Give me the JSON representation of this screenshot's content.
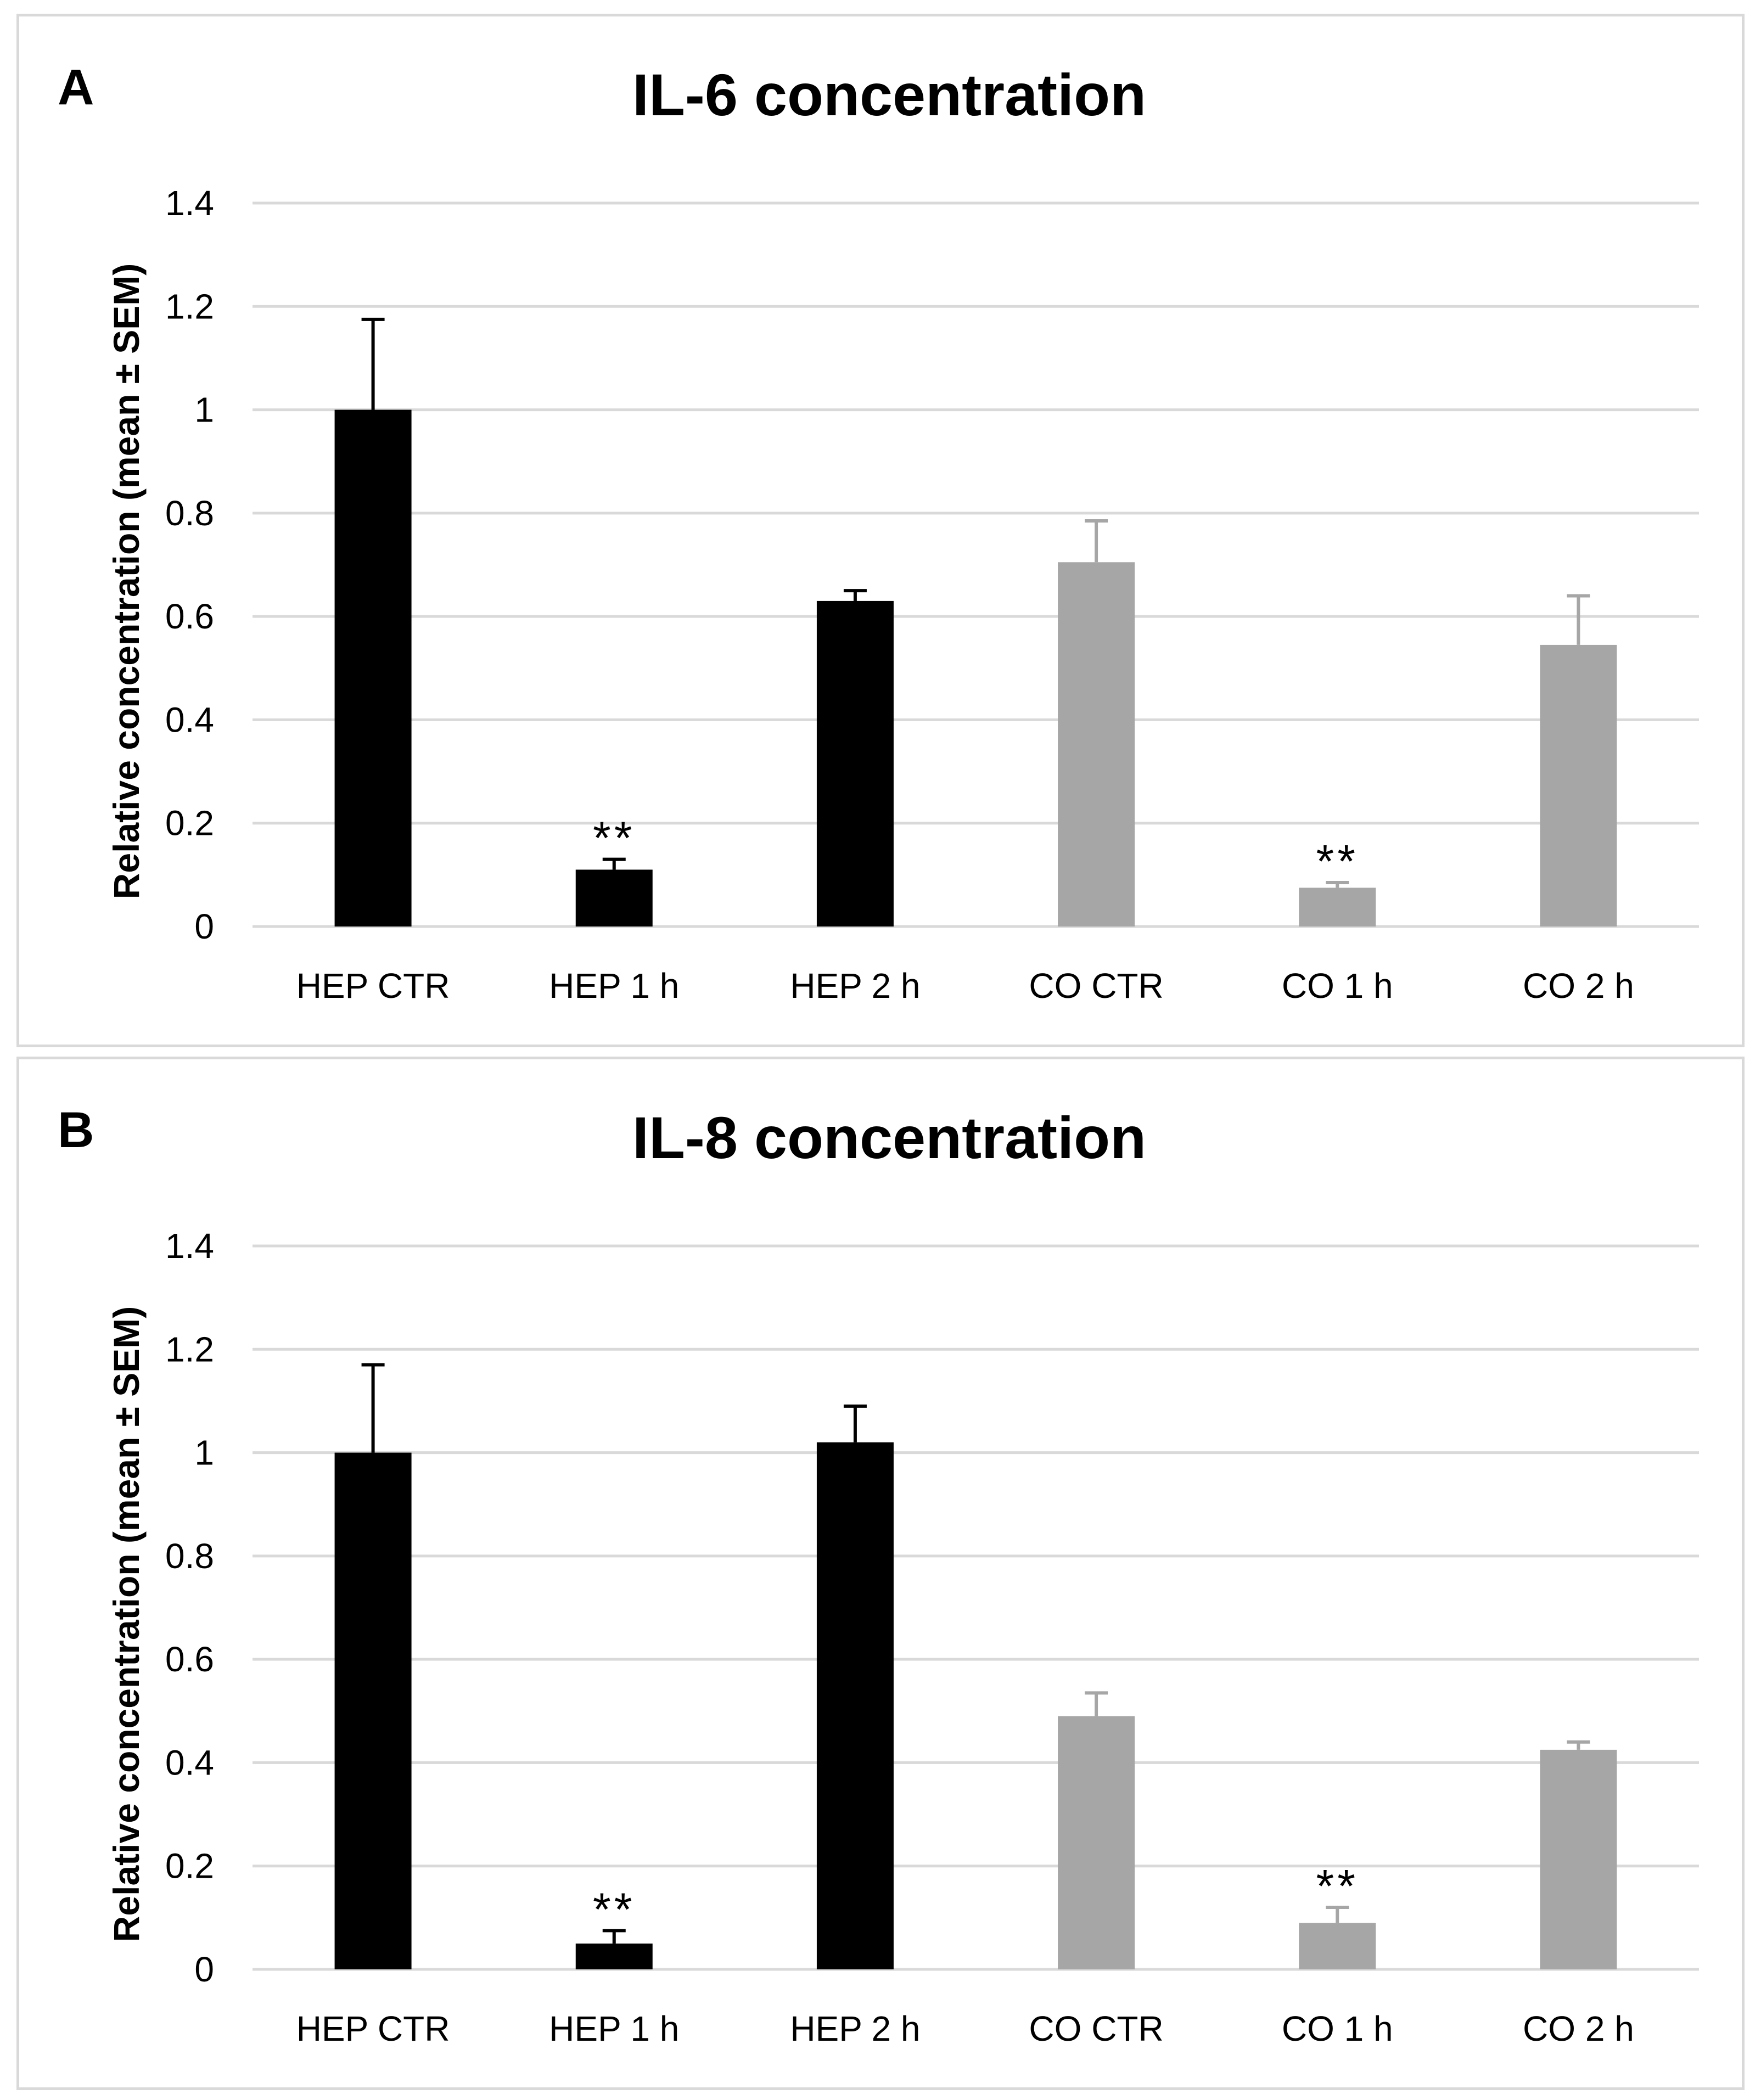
{
  "chart_data": [
    {
      "type": "bar",
      "panel_label": "A",
      "title": "IL-6 concentration",
      "xlabel": "",
      "ylabel": "Relative concentration (mean ± SEM)",
      "ylim": [
        0,
        1.4
      ],
      "yticks": [
        0,
        0.2,
        0.4,
        0.6,
        0.8,
        1,
        1.2,
        1.4
      ],
      "ytick_labels": [
        "0",
        "0.2",
        "0.4",
        "0.6",
        "0.8",
        "1",
        "1.2",
        "1.4"
      ],
      "grid": true,
      "categories": [
        "HEP CTR",
        "HEP 1 h",
        "HEP 2 h",
        "CO CTR",
        "CO 1 h",
        "CO 2 h"
      ],
      "values": [
        1.0,
        0.11,
        0.63,
        0.705,
        0.075,
        0.545
      ],
      "errors": [
        0.175,
        0.02,
        0.02,
        0.08,
        0.01,
        0.095
      ],
      "annotations": [
        "",
        "**",
        "",
        "",
        "**",
        ""
      ],
      "colors": [
        "#000000",
        "#000000",
        "#000000",
        "#a6a6a6",
        "#a6a6a6",
        "#a6a6a6"
      ]
    },
    {
      "type": "bar",
      "panel_label": "B",
      "title": "IL-8 concentration",
      "xlabel": "",
      "ylabel": "Relative concentration (mean ± SEM)",
      "ylim": [
        0,
        1.4
      ],
      "yticks": [
        0,
        0.2,
        0.4,
        0.6,
        0.8,
        1,
        1.2,
        1.4
      ],
      "ytick_labels": [
        "0",
        "0.2",
        "0.4",
        "0.6",
        "0.8",
        "1",
        "1.2",
        "1.4"
      ],
      "grid": true,
      "categories": [
        "HEP CTR",
        "HEP 1 h",
        "HEP 2 h",
        "CO CTR",
        "CO 1 h",
        "CO 2 h"
      ],
      "values": [
        1.0,
        0.05,
        1.02,
        0.49,
        0.09,
        0.425
      ],
      "errors": [
        0.17,
        0.025,
        0.07,
        0.045,
        0.03,
        0.015
      ],
      "annotations": [
        "",
        "**",
        "",
        "",
        "**",
        ""
      ],
      "colors": [
        "#000000",
        "#000000",
        "#000000",
        "#a6a6a6",
        "#a6a6a6",
        "#a6a6a6"
      ]
    }
  ]
}
